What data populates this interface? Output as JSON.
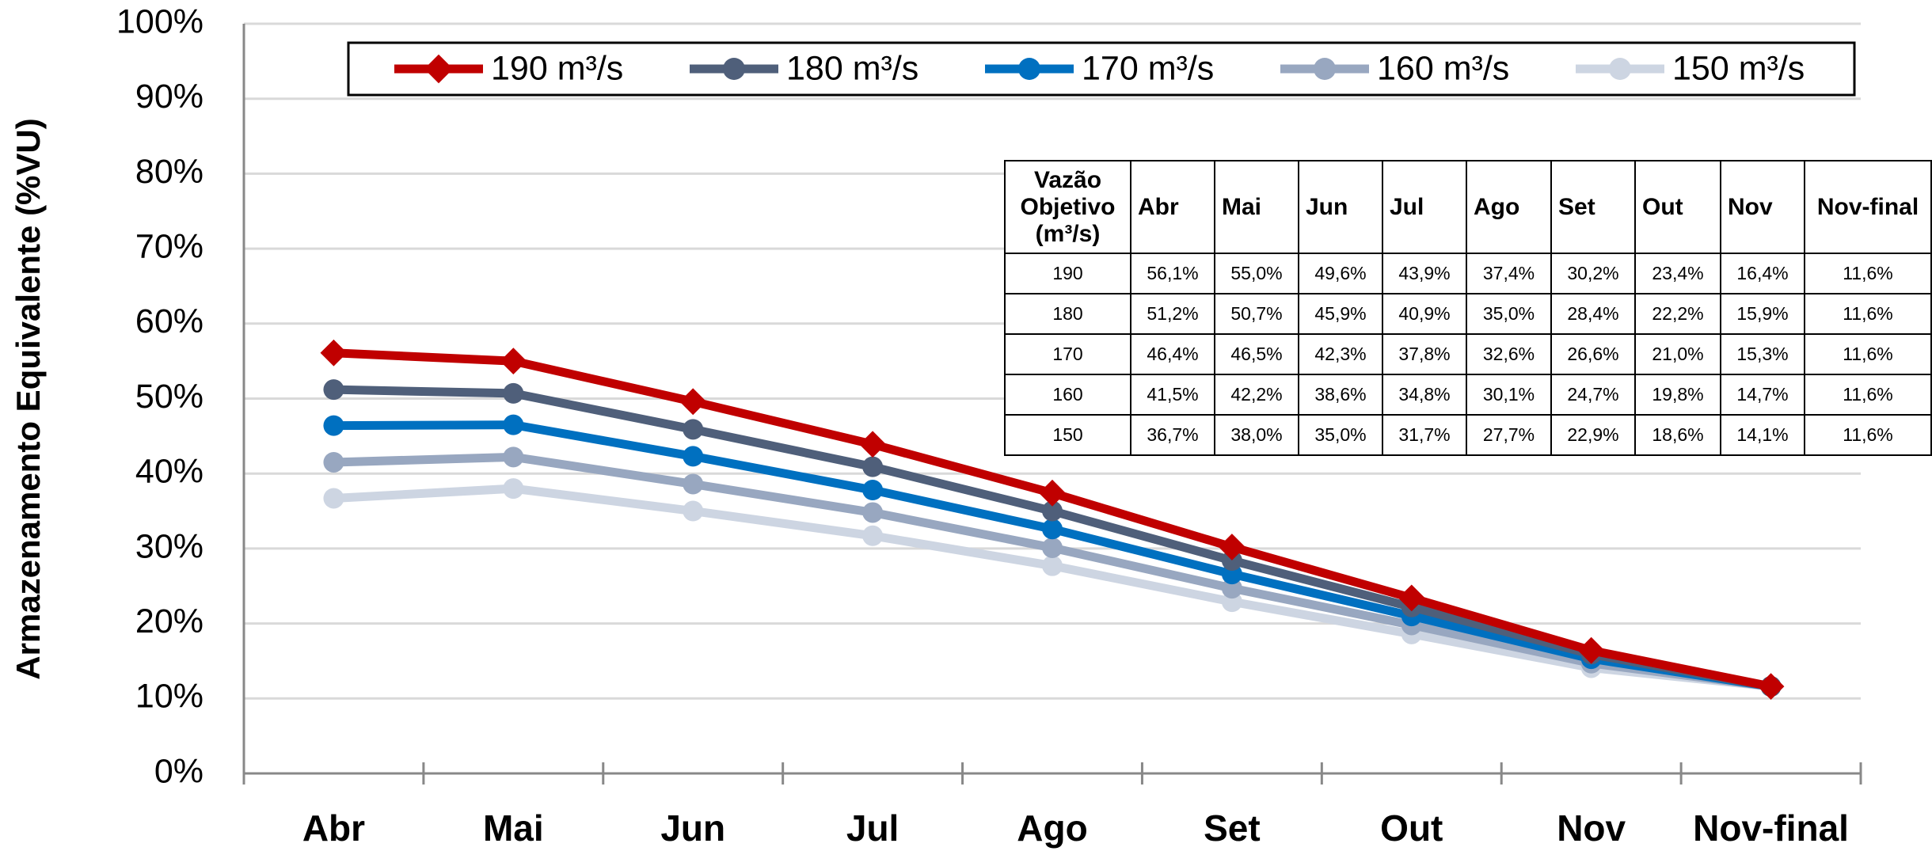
{
  "chart_data": {
    "type": "line",
    "y_axis_label": "Armazenamento Equivalente (%VU)",
    "categories": [
      "Abr",
      "Mai",
      "Jun",
      "Jul",
      "Ago",
      "Set",
      "Out",
      "Nov",
      "Nov-final"
    ],
    "series": [
      {
        "name": "190 m³/s",
        "color": "#c00000",
        "marker": "diamond",
        "values": [
          56.1,
          55.0,
          49.6,
          43.9,
          37.4,
          30.2,
          23.4,
          16.4,
          11.6
        ]
      },
      {
        "name": "180 m³/s",
        "color": "#4f5f7a",
        "marker": "circle",
        "values": [
          51.2,
          50.7,
          45.9,
          40.9,
          35.0,
          28.4,
          22.2,
          15.9,
          11.6
        ]
      },
      {
        "name": "170 m³/s",
        "color": "#0070c0",
        "marker": "circle",
        "values": [
          46.4,
          46.5,
          42.3,
          37.8,
          32.6,
          26.6,
          21.0,
          15.3,
          11.6
        ]
      },
      {
        "name": "160 m³/s",
        "color": "#98a7c0",
        "marker": "circle",
        "values": [
          41.5,
          42.2,
          38.6,
          34.8,
          30.1,
          24.7,
          19.8,
          14.7,
          11.6
        ]
      },
      {
        "name": "150 m³/s",
        "color": "#cdd5e2",
        "marker": "circle",
        "values": [
          36.7,
          38.0,
          35.0,
          31.7,
          27.7,
          22.9,
          18.6,
          14.1,
          11.6
        ]
      }
    ],
    "ylim": [
      0,
      100
    ],
    "yticks": [
      {
        "value": 0,
        "label": "0%"
      },
      {
        "value": 10,
        "label": "10%"
      },
      {
        "value": 20,
        "label": "20%"
      },
      {
        "value": 30,
        "label": "30%"
      },
      {
        "value": 40,
        "label": "40%"
      },
      {
        "value": 50,
        "label": "50%"
      },
      {
        "value": 60,
        "label": "60%"
      },
      {
        "value": 70,
        "label": "70%"
      },
      {
        "value": 80,
        "label": "80%"
      },
      {
        "value": 90,
        "label": "90%"
      },
      {
        "value": 100,
        "label": "100%"
      }
    ],
    "grid": true,
    "legend": "top"
  },
  "table": {
    "header": [
      "Vazão Objetivo (m³/s)",
      "Abr",
      "Mai",
      "Jun",
      "Jul",
      "Ago",
      "Set",
      "Out",
      "Nov",
      "Nov-final"
    ],
    "rows": [
      [
        "190",
        "56,1%",
        "55,0%",
        "49,6%",
        "43,9%",
        "37,4%",
        "30,2%",
        "23,4%",
        "16,4%",
        "11,6%"
      ],
      [
        "180",
        "51,2%",
        "50,7%",
        "45,9%",
        "40,9%",
        "35,0%",
        "28,4%",
        "22,2%",
        "15,9%",
        "11,6%"
      ],
      [
        "170",
        "46,4%",
        "46,5%",
        "42,3%",
        "37,8%",
        "32,6%",
        "26,6%",
        "21,0%",
        "15,3%",
        "11,6%"
      ],
      [
        "160",
        "41,5%",
        "42,2%",
        "38,6%",
        "34,8%",
        "30,1%",
        "24,7%",
        "19,8%",
        "14,7%",
        "11,6%"
      ],
      [
        "150",
        "36,7%",
        "38,0%",
        "35,0%",
        "31,7%",
        "27,7%",
        "22,9%",
        "18,6%",
        "14,1%",
        "11,6%"
      ]
    ]
  }
}
